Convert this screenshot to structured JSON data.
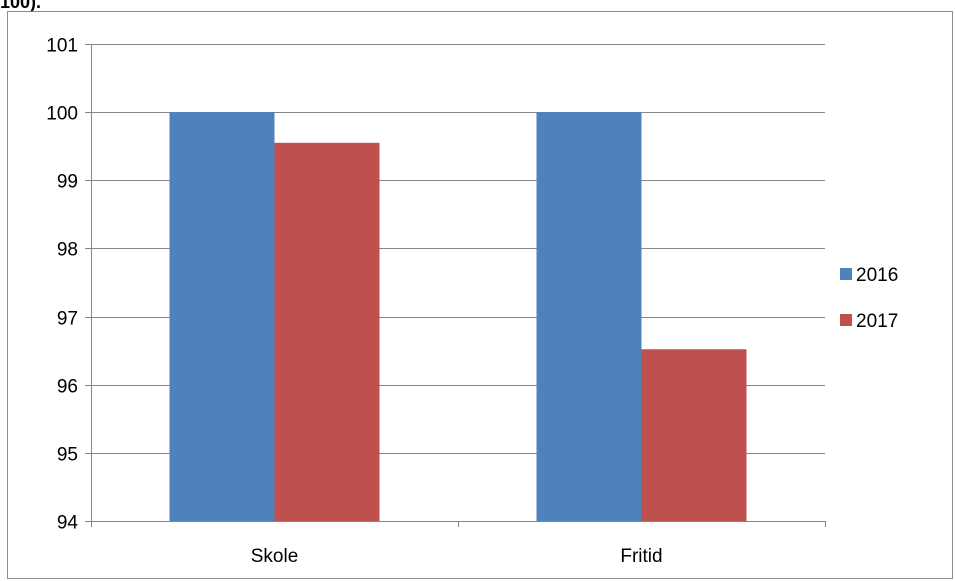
{
  "page": {
    "top_fragment": "100)."
  },
  "chart_data": {
    "type": "bar",
    "categories": [
      "Skole",
      "Fritid"
    ],
    "series": [
      {
        "name": "2016",
        "values": [
          100,
          100
        ],
        "color": "#4f81bd"
      },
      {
        "name": "2017",
        "values": [
          99.55,
          96.52
        ],
        "color": "#c0504d"
      }
    ],
    "ylim": [
      94,
      101
    ],
    "yticks": [
      94,
      95,
      96,
      97,
      98,
      99,
      100,
      101
    ],
    "grid": true,
    "legend": "right",
    "title": "",
    "xlabel": "",
    "ylabel": ""
  }
}
